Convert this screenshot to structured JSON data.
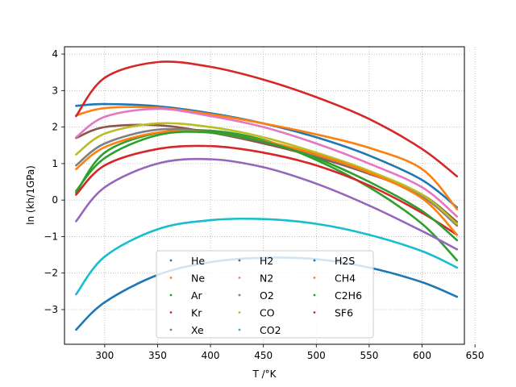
{
  "chart_data": {
    "type": "scatter",
    "title": "",
    "xlabel": "T /°K",
    "ylabel": "ln (kh/1GPa)",
    "xlim": [
      262,
      640
    ],
    "ylim": [
      -3.95,
      4.2
    ],
    "xticks": [
      300,
      350,
      400,
      450,
      500,
      550,
      600,
      650
    ],
    "yticks": [
      -3,
      -2,
      -1,
      0,
      1,
      2,
      3,
      4
    ],
    "grid": true,
    "legend": {
      "placement": "bottom-center",
      "columns": 3
    },
    "series": [
      {
        "name": "He",
        "color": "#1f77b4",
        "x": [
          273,
          300,
          350,
          400,
          450,
          500,
          550,
          600,
          633
        ],
        "y": [
          2.58,
          2.63,
          2.57,
          2.38,
          2.1,
          1.72,
          1.22,
          0.55,
          -0.2
        ]
      },
      {
        "name": "Ne",
        "color": "#ff7f0e",
        "x": [
          273,
          300,
          350,
          400,
          450,
          500,
          550,
          600,
          633
        ],
        "y": [
          2.32,
          2.52,
          2.53,
          2.35,
          2.1,
          1.8,
          1.43,
          0.85,
          -0.25
        ]
      },
      {
        "name": "Ar",
        "color": "#2ca02c",
        "x": [
          273,
          300,
          350,
          400,
          450,
          500,
          550,
          600,
          633
        ],
        "y": [
          0.2,
          1.3,
          1.84,
          1.9,
          1.65,
          1.1,
          0.35,
          -0.65,
          -1.65
        ]
      },
      {
        "name": "Kr",
        "color": "#d62728",
        "x": [
          273,
          300,
          350,
          400,
          450,
          500,
          550,
          600,
          633
        ],
        "y": [
          0.15,
          0.95,
          1.4,
          1.48,
          1.3,
          0.95,
          0.4,
          -0.35,
          -0.95
        ]
      },
      {
        "name": "Xe",
        "color": "#9467bd",
        "x": [
          273,
          300,
          350,
          400,
          450,
          500,
          550,
          600,
          633
        ],
        "y": [
          -0.58,
          0.35,
          1.0,
          1.12,
          0.9,
          0.45,
          -0.15,
          -0.85,
          -1.35
        ]
      },
      {
        "name": "H2",
        "color": "#8c564b",
        "x": [
          273,
          300,
          350,
          400,
          450,
          500,
          550,
          600,
          633
        ],
        "y": [
          1.7,
          2.0,
          2.05,
          1.85,
          1.55,
          1.18,
          0.72,
          0.15,
          -0.6
        ]
      },
      {
        "name": "N2",
        "color": "#e377c2",
        "x": [
          273,
          300,
          350,
          400,
          450,
          500,
          550,
          600,
          633
        ],
        "y": [
          1.72,
          2.28,
          2.5,
          2.3,
          2.0,
          1.55,
          1.0,
          0.35,
          -0.45
        ]
      },
      {
        "name": "O2",
        "color": "#7f7f7f",
        "x": [
          273,
          300,
          350,
          400,
          450,
          500,
          550,
          600,
          633
        ],
        "y": [
          0.95,
          1.55,
          1.93,
          1.85,
          1.6,
          1.22,
          0.74,
          0.1,
          -0.7
        ]
      },
      {
        "name": "CO",
        "color": "#bcbd22",
        "x": [
          273,
          300,
          350,
          400,
          450,
          500,
          550,
          600,
          633
        ],
        "y": [
          1.25,
          1.82,
          2.1,
          2.0,
          1.72,
          1.3,
          0.8,
          0.15,
          -0.65
        ]
      },
      {
        "name": "CO2",
        "color": "#17becf",
        "x": [
          273,
          300,
          350,
          400,
          450,
          500,
          550,
          600,
          633
        ],
        "y": [
          -2.58,
          -1.55,
          -0.8,
          -0.55,
          -0.52,
          -0.65,
          -0.95,
          -1.4,
          -1.85
        ]
      },
      {
        "name": "H2S",
        "color": "#1f77b4",
        "x": [
          273,
          300,
          350,
          400,
          450,
          500,
          550,
          600,
          633
        ],
        "y": [
          -3.55,
          -2.8,
          -2.05,
          -1.7,
          -1.58,
          -1.62,
          -1.85,
          -2.25,
          -2.65
        ]
      },
      {
        "name": "CH4",
        "color": "#ff7f0e",
        "x": [
          273,
          300,
          350,
          400,
          450,
          500,
          550,
          600,
          633
        ],
        "y": [
          0.85,
          1.45,
          1.85,
          1.85,
          1.62,
          1.25,
          0.75,
          0.05,
          -0.95
        ]
      },
      {
        "name": "C2H6",
        "color": "#2ca02c",
        "x": [
          273,
          300,
          350,
          400,
          450,
          500,
          550,
          600,
          633
        ],
        "y": [
          0.25,
          1.15,
          1.78,
          1.85,
          1.6,
          1.15,
          0.5,
          -0.3,
          -1.1
        ]
      },
      {
        "name": "SF6",
        "color": "#d62728",
        "x": [
          273,
          300,
          350,
          400,
          450,
          500,
          550,
          600,
          633
        ],
        "y": [
          2.3,
          3.35,
          3.78,
          3.65,
          3.3,
          2.82,
          2.22,
          1.4,
          0.65
        ]
      }
    ]
  }
}
